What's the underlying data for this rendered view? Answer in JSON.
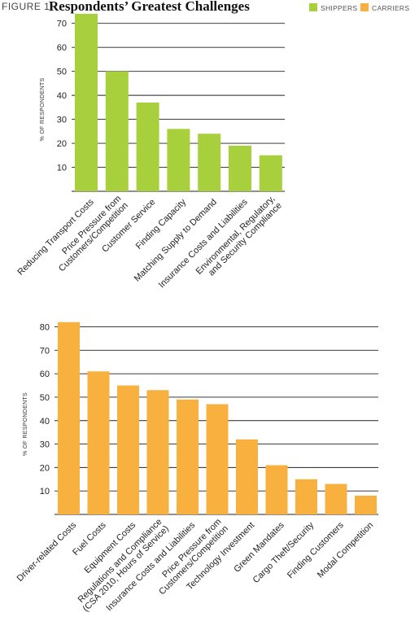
{
  "header": {
    "figure_label": "FIGURE 1",
    "title": "Respondents’ Greatest Challenges",
    "legend": [
      {
        "label": "SHIPPERS",
        "color": "#a8cf3c"
      },
      {
        "label": "CARRIERS",
        "color": "#f8b03f"
      }
    ]
  },
  "chart_data": [
    {
      "type": "bar",
      "series": [
        {
          "name": "SHIPPERS",
          "values": [
            74,
            50,
            37,
            26,
            24,
            19,
            15
          ]
        }
      ],
      "categories": [
        "Reducing Transport Costs",
        "Price Pressure from Customers/Competition",
        "Customer Service",
        "Finding Capacity",
        "Matching Supply to Demand",
        "Insurance Costs and Liabilities",
        "Environmental, Regulatory, and Security Compliance"
      ],
      "values": [
        74,
        50,
        37,
        26,
        24,
        19,
        15
      ],
      "ylabel": "% OF RESPONDENTS",
      "yticks": [
        10,
        20,
        30,
        40,
        50,
        60,
        70
      ],
      "ylim": [
        0,
        75
      ],
      "grid": true,
      "color": "#a8cf3c"
    },
    {
      "type": "bar",
      "series": [
        {
          "name": "CARRIERS",
          "values": [
            82,
            61,
            55,
            53,
            49,
            47,
            32,
            21,
            15,
            13,
            8
          ]
        }
      ],
      "categories": [
        "Driver-related Costs",
        "Fuel Costs",
        "Equipment Costs",
        "Regulations and Compliance (CSA 2010, Hours of Service)",
        "Insurance Costs and Liabilities",
        "Price Pressure from Customers/Competition",
        "Technology Investment",
        "Green Mandates",
        "Cargo Theft/Security",
        "Finding Customers",
        "Modal Competition"
      ],
      "values": [
        82,
        61,
        55,
        53,
        49,
        47,
        32,
        21,
        15,
        13,
        8
      ],
      "ylabel": "% OF RESPONDENTS",
      "yticks": [
        10,
        20,
        30,
        40,
        50,
        60,
        70,
        80
      ],
      "ylim": [
        0,
        84
      ],
      "grid": true,
      "color": "#f8b03f"
    }
  ]
}
